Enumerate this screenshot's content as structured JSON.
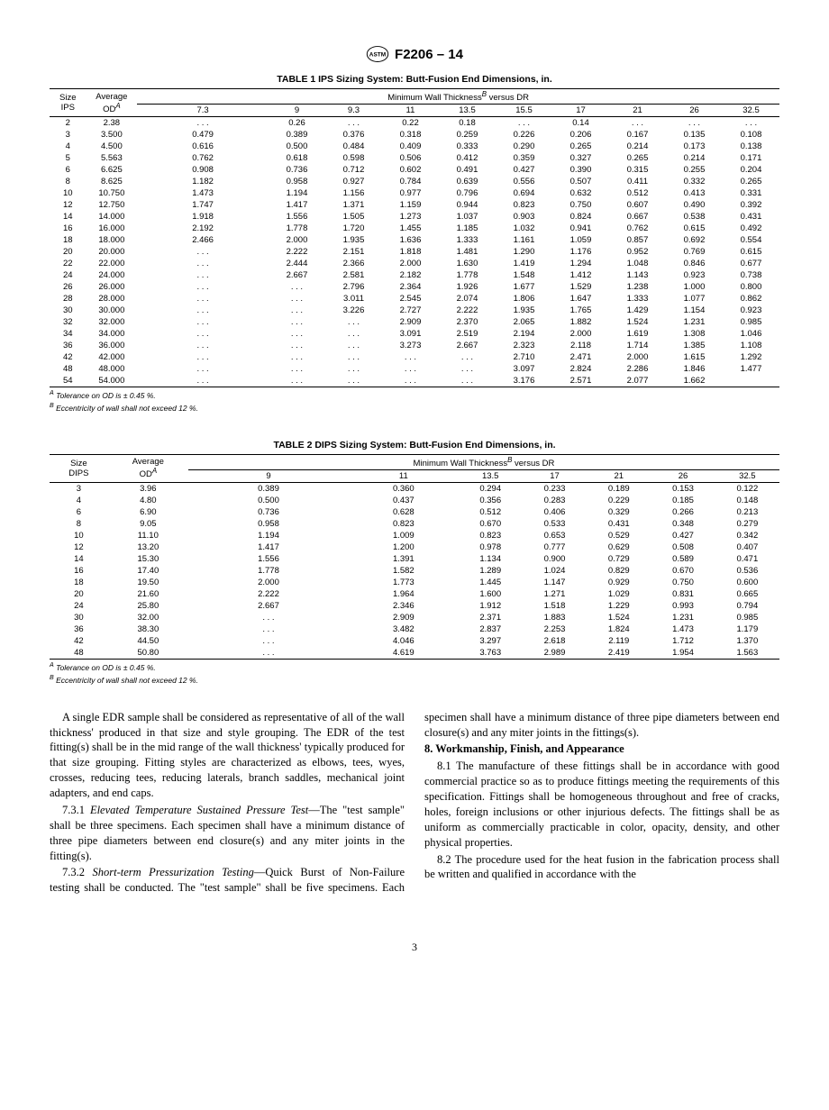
{
  "doc_id": "F2206 – 14",
  "page_num": "3",
  "table1": {
    "title": "TABLE 1 IPS Sizing System: Butt-Fusion End Dimensions, in.",
    "size_head": "Size\nIPS",
    "od_head": "Average\nOD",
    "od_sup": "A",
    "thick_head": "Minimum Wall Thickness",
    "thick_sup": "B",
    "thick_suffix": " versus DR",
    "dr": [
      "7.3",
      "9",
      "9.3",
      "11",
      "13.5",
      "15.5",
      "17",
      "21",
      "26",
      "32.5"
    ],
    "rows": [
      [
        "2",
        "2.38",
        ". . .",
        "0.26",
        ". . .",
        "0.22",
        "0.18",
        ". . .",
        "0.14",
        ". . .",
        ". . .",
        ". . ."
      ],
      [
        "3",
        "3.500",
        "0.479",
        "0.389",
        "0.376",
        "0.318",
        "0.259",
        "0.226",
        "0.206",
        "0.167",
        "0.135",
        "0.108"
      ],
      [
        "4",
        "4.500",
        "0.616",
        "0.500",
        "0.484",
        "0.409",
        "0.333",
        "0.290",
        "0.265",
        "0.214",
        "0.173",
        "0.138"
      ],
      [
        "5",
        "5.563",
        "0.762",
        "0.618",
        "0.598",
        "0.506",
        "0.412",
        "0.359",
        "0.327",
        "0.265",
        "0.214",
        "0.171"
      ],
      [
        "6",
        "6.625",
        "0.908",
        "0.736",
        "0.712",
        "0.602",
        "0.491",
        "0.427",
        "0.390",
        "0.315",
        "0.255",
        "0.204"
      ],
      [
        "8",
        "8.625",
        "1.182",
        "0.958",
        "0.927",
        "0.784",
        "0.639",
        "0.556",
        "0.507",
        "0.411",
        "0.332",
        "0.265"
      ],
      [
        "10",
        "10.750",
        "1.473",
        "1.194",
        "1.156",
        "0.977",
        "0.796",
        "0.694",
        "0.632",
        "0.512",
        "0.413",
        "0.331"
      ],
      [
        "12",
        "12.750",
        "1.747",
        "1.417",
        "1.371",
        "1.159",
        "0.944",
        "0.823",
        "0.750",
        "0.607",
        "0.490",
        "0.392"
      ],
      [
        "14",
        "14.000",
        "1.918",
        "1.556",
        "1.505",
        "1.273",
        "1.037",
        "0.903",
        "0.824",
        "0.667",
        "0.538",
        "0.431"
      ],
      [
        "16",
        "16.000",
        "2.192",
        "1.778",
        "1.720",
        "1.455",
        "1.185",
        "1.032",
        "0.941",
        "0.762",
        "0.615",
        "0.492"
      ],
      [
        "18",
        "18.000",
        "2.466",
        "2.000",
        "1.935",
        "1.636",
        "1.333",
        "1.161",
        "1.059",
        "0.857",
        "0.692",
        "0.554"
      ],
      [
        "20",
        "20.000",
        ". . .",
        "2.222",
        "2.151",
        "1.818",
        "1.481",
        "1.290",
        "1.176",
        "0.952",
        "0.769",
        "0.615"
      ],
      [
        "22",
        "22.000",
        ". . .",
        "2.444",
        "2.366",
        "2.000",
        "1.630",
        "1.419",
        "1.294",
        "1.048",
        "0.846",
        "0.677"
      ],
      [
        "24",
        "24.000",
        ". . .",
        "2.667",
        "2.581",
        "2.182",
        "1.778",
        "1.548",
        "1.412",
        "1.143",
        "0.923",
        "0.738"
      ],
      [
        "26",
        "26.000",
        ". . .",
        ". . .",
        "2.796",
        "2.364",
        "1.926",
        "1.677",
        "1.529",
        "1.238",
        "1.000",
        "0.800"
      ],
      [
        "28",
        "28.000",
        ". . .",
        ". . .",
        "3.011",
        "2.545",
        "2.074",
        "1.806",
        "1.647",
        "1.333",
        "1.077",
        "0.862"
      ],
      [
        "30",
        "30.000",
        ". . .",
        ". . .",
        "3.226",
        "2.727",
        "2.222",
        "1.935",
        "1.765",
        "1.429",
        "1.154",
        "0.923"
      ],
      [
        "32",
        "32.000",
        ". . .",
        ". . .",
        ". . .",
        "2.909",
        "2.370",
        "2.065",
        "1.882",
        "1.524",
        "1.231",
        "0.985"
      ],
      [
        "34",
        "34.000",
        ". . .",
        ". . .",
        ". . .",
        "3.091",
        "2.519",
        "2.194",
        "2.000",
        "1.619",
        "1.308",
        "1.046"
      ],
      [
        "36",
        "36.000",
        ". . .",
        ". . .",
        ". . .",
        "3.273",
        "2.667",
        "2.323",
        "2.118",
        "1.714",
        "1.385",
        "1.108"
      ],
      [
        "42",
        "42.000",
        ". . .",
        ". . .",
        ". . .",
        ". . .",
        ". . .",
        "2.710",
        "2.471",
        "2.000",
        "1.615",
        "1.292"
      ],
      [
        "48",
        "48.000",
        ". . .",
        ". . .",
        ". . .",
        ". . .",
        ". . .",
        "3.097",
        "2.824",
        "2.286",
        "1.846",
        "1.477"
      ],
      [
        "54",
        "54.000",
        ". . .",
        ". . .",
        ". . .",
        ". . .",
        ". . .",
        "3.176",
        "2.571",
        "2.077",
        "1.662",
        ""
      ]
    ],
    "fn_a": " Tolerance on OD is ± 0.45 %.",
    "fn_b": " Eccentricity of wall shall not exceed 12 %."
  },
  "table2": {
    "title": "TABLE 2 DIPS Sizing System: Butt-Fusion End Dimensions, in.",
    "size_head": "Size\nDIPS",
    "dr": [
      "9",
      "11",
      "13.5",
      "17",
      "21",
      "26",
      "32.5"
    ],
    "rows": [
      [
        "3",
        "3.96",
        "0.389",
        "0.360",
        "0.294",
        "0.233",
        "0.189",
        "0.153",
        "0.122"
      ],
      [
        "4",
        "4.80",
        "0.500",
        "0.437",
        "0.356",
        "0.283",
        "0.229",
        "0.185",
        "0.148"
      ],
      [
        "6",
        "6.90",
        "0.736",
        "0.628",
        "0.512",
        "0.406",
        "0.329",
        "0.266",
        "0.213"
      ],
      [
        "8",
        "9.05",
        "0.958",
        "0.823",
        "0.670",
        "0.533",
        "0.431",
        "0.348",
        "0.279"
      ],
      [
        "10",
        "11.10",
        "1.194",
        "1.009",
        "0.823",
        "0.653",
        "0.529",
        "0.427",
        "0.342"
      ],
      [
        "12",
        "13.20",
        "1.417",
        "1.200",
        "0.978",
        "0.777",
        "0.629",
        "0.508",
        "0.407"
      ],
      [
        "14",
        "15.30",
        "1.556",
        "1.391",
        "1.134",
        "0.900",
        "0.729",
        "0.589",
        "0.471"
      ],
      [
        "16",
        "17.40",
        "1.778",
        "1.582",
        "1.289",
        "1.024",
        "0.829",
        "0.670",
        "0.536"
      ],
      [
        "18",
        "19.50",
        "2.000",
        "1.773",
        "1.445",
        "1.147",
        "0.929",
        "0.750",
        "0.600"
      ],
      [
        "20",
        "21.60",
        "2.222",
        "1.964",
        "1.600",
        "1.271",
        "1.029",
        "0.831",
        "0.665"
      ],
      [
        "24",
        "25.80",
        "2.667",
        "2.346",
        "1.912",
        "1.518",
        "1.229",
        "0.993",
        "0.794"
      ],
      [
        "30",
        "32.00",
        ". . .",
        "2.909",
        "2.371",
        "1.883",
        "1.524",
        "1.231",
        "0.985"
      ],
      [
        "36",
        "38.30",
        ". . .",
        "3.482",
        "2.837",
        "2.253",
        "1.824",
        "1.473",
        "1.179"
      ],
      [
        "42",
        "44.50",
        ". . .",
        "4.046",
        "3.297",
        "2.618",
        "2.119",
        "1.712",
        "1.370"
      ],
      [
        "48",
        "50.80",
        ". . .",
        "4.619",
        "3.763",
        "2.989",
        "2.419",
        "1.954",
        "1.563"
      ]
    ]
  },
  "body": {
    "p1": "A single EDR sample shall be considered as representative of all of the wall thickness' produced in that size and style grouping. The EDR of the test fitting(s) shall be in the mid range of the wall thickness' typically produced for that size grouping. Fitting styles are characterized as elbows, tees, wyes, crosses, reducing tees, reducing laterals, branch saddles, mechanical joint adapters, and end caps.",
    "p2a": "7.3.1 ",
    "p2b": "Elevated Temperature Sustained Pressure Test",
    "p2c": "—The \"test sample\" shall be three specimens. Each specimen shall have a minimum distance of three pipe diameters between end closure(s) and any miter joints in the fitting(s).",
    "p3a": "7.3.2 ",
    "p3b": "Short-term Pressurization Testing",
    "p3c": "—Quick Burst of Non-Failure testing shall be conducted. The \"test sample\" shall be five specimens. Each specimen shall have a minimum distance of three pipe diameters between end closure(s) and any miter joints in the fittings(s).",
    "s8": "8. Workmanship, Finish, and Appearance",
    "p4": "8.1 The manufacture of these fittings shall be in accordance with good commercial practice so as to produce fittings meeting the requirements of this specification. Fittings shall be homogeneous throughout and free of cracks, holes, foreign inclusions or other injurious defects. The fittings shall be as uniform as commercially practicable in color, opacity, density, and other physical properties.",
    "p5": "8.2 The procedure used for the heat fusion in the fabrication process shall be written and qualified in accordance with the"
  }
}
